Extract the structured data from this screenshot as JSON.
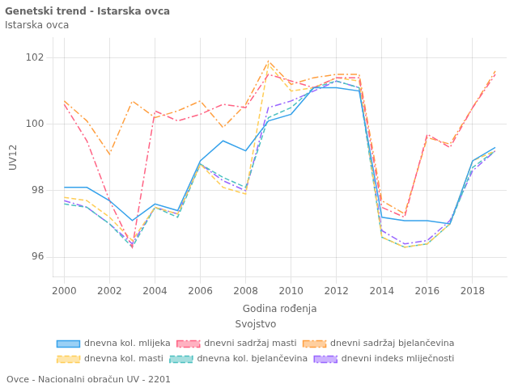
{
  "chart_data": {
    "type": "line",
    "title": "Genetski trend - Istarska ovca",
    "subtitle": "Istarska ovca",
    "annotations": [
      "Ovce - Nacionalni obračun UV - 2201"
    ],
    "x_label": "Godina rođenja",
    "y_label": "UV12",
    "legend": "bottom",
    "legend_title": "Svojstvo",
    "grid": true,
    "x": [
      2000,
      2001,
      2002,
      2003,
      2004,
      2005,
      2006,
      2007,
      2008,
      2009,
      2010,
      2011,
      2012,
      2013,
      2014,
      2015,
      2016,
      2017,
      2018,
      2019
    ],
    "xlim": [
      1999.5,
      2019.5
    ],
    "xticks": [
      2000,
      2002,
      2004,
      2006,
      2008,
      2010,
      2012,
      2014,
      2016,
      2018
    ],
    "ylim": [
      95.4,
      102.6
    ],
    "yticks": [
      96,
      98,
      100,
      102
    ],
    "series": [
      {
        "name": "dnevna kol. mlijeka",
        "line_style": "solid",
        "values": [
          98.1,
          98.1,
          97.7,
          97.1,
          97.6,
          97.4,
          98.9,
          99.5,
          99.2,
          100.1,
          100.3,
          101.1,
          101.1,
          101.0,
          97.2,
          97.1,
          97.1,
          97.0,
          98.9,
          99.3
        ]
      },
      {
        "name": "dnevni sadržaj masti",
        "line_style": "dashdot",
        "values": [
          100.6,
          99.5,
          97.7,
          96.3,
          100.4,
          100.1,
          100.3,
          100.6,
          100.5,
          101.5,
          101.3,
          101.1,
          101.4,
          101.4,
          97.5,
          97.2,
          99.7,
          99.3,
          100.5,
          101.5
        ]
      },
      {
        "name": "dnevni sadržaj bjelančevina",
        "line_style": "dashdot",
        "values": [
          100.7,
          100.1,
          99.1,
          100.7,
          100.2,
          100.4,
          100.7,
          99.9,
          100.6,
          101.9,
          101.2,
          101.4,
          101.5,
          101.5,
          97.7,
          97.3,
          99.6,
          99.4,
          100.5,
          101.6
        ]
      },
      {
        "name": "dnevna kol. masti",
        "line_style": "dashed",
        "values": [
          97.8,
          97.7,
          97.2,
          96.5,
          97.5,
          97.3,
          98.8,
          98.1,
          97.9,
          101.8,
          101.0,
          101.1,
          101.4,
          101.3,
          96.6,
          96.3,
          96.4,
          97.0,
          98.9,
          99.2
        ]
      },
      {
        "name": "dnevna kol. bjelančevina",
        "line_style": "dashed",
        "values": [
          97.6,
          97.5,
          97.0,
          96.3,
          97.5,
          97.2,
          98.8,
          98.4,
          98.1,
          100.2,
          100.5,
          101.1,
          101.3,
          101.1,
          96.6,
          96.3,
          96.4,
          97.0,
          98.7,
          99.2
        ]
      },
      {
        "name": "dnevni indeks mliječnosti",
        "line_style": "dashdot",
        "values": [
          97.7,
          97.5,
          97.0,
          96.4,
          97.5,
          97.3,
          98.8,
          98.3,
          98.0,
          100.5,
          100.7,
          101.0,
          101.3,
          101.1,
          96.8,
          96.4,
          96.5,
          97.1,
          98.6,
          99.2
        ]
      }
    ]
  }
}
